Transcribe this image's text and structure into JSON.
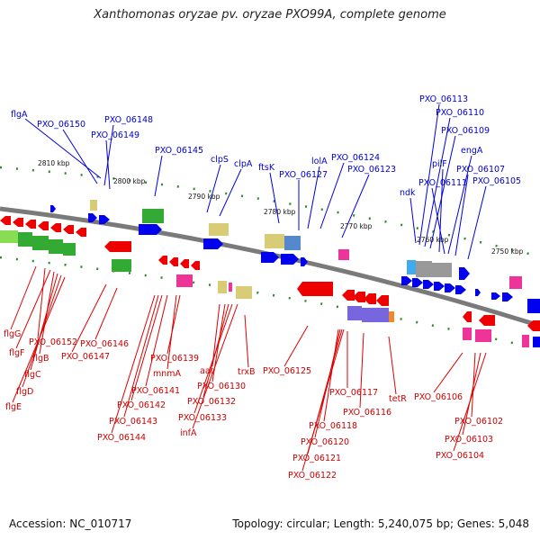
{
  "title": "Xanthomonas oryzae pv. oryzae PXO99A, complete genome",
  "footer": {
    "accession": "Accession: NC_010717",
    "summary": "Topology: circular; Length: 5,240,075 bp; Genes: 5,048"
  },
  "ticks": [
    "2810 kbp",
    "2800 kbp",
    "2790 kbp",
    "2780 kbp",
    "2770 kbp",
    "2760 kbp",
    "2750 kbp"
  ],
  "labels_top": [
    "flgA",
    "PXO_06150",
    "PXO_06148",
    "PXO_06149",
    "PXO_06145",
    "clpS",
    "clpA",
    "ftsK",
    "PXO_06127",
    "lolA",
    "PXO_06124",
    "PXO_06123",
    "ndk",
    "PXO_06113",
    "PXO_06110",
    "PXO_06109",
    "pilF",
    "engA",
    "PXO_06107",
    "PXO_06111",
    "PXO_06105"
  ],
  "labels_bottom": [
    "flgG",
    "PXO_06152",
    "flgF",
    "flgB",
    "flgC",
    "flgD",
    "flgE",
    "PXO_06146",
    "PXO_06147",
    "PXO_06139",
    "mnmA",
    "PXO_06141",
    "PXO_06142",
    "PXO_06143",
    "PXO_06144",
    "aat",
    "PXO_06130",
    "PXO_06132",
    "PXO_06133",
    "infA",
    "trxB",
    "PXO_06125",
    "PXO_06117",
    "PXO_06116",
    "PXO_06118",
    "PXO_06120",
    "PXO_06121",
    "PXO_06122",
    "tetR",
    "PXO_06106",
    "PXO_06102",
    "PXO_06103",
    "PXO_06104"
  ]
}
